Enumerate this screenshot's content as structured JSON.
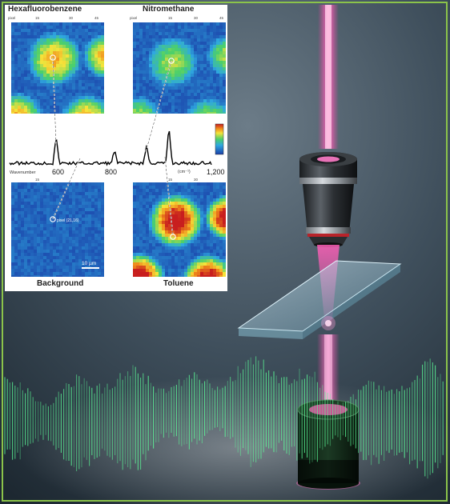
{
  "inset": {
    "top_left_title": "Hexafluorobenzene",
    "top_right_title": "Nitromethane",
    "bottom_left_title": "Background",
    "bottom_right_title": "Toluene",
    "axis_label": "Wavenumber",
    "tick_600": "600",
    "tick_800": "800",
    "unit": "(cm⁻¹)",
    "tick_1200": "1,200",
    "pixel_tag": "pixel (21,16)",
    "scale_bar": "10 µm",
    "small_ticks": {
      "pixel": "pixel",
      "t15": "15",
      "t30": "30",
      "t45": "45"
    }
  },
  "colors": {
    "frame_border": "#8bc34a",
    "laser_pink": "#ff3fa8",
    "wave_green": "#5dff9a",
    "map_background": "#1a3fa8"
  },
  "icons": {
    "objective": "microscope-objective-lens",
    "slide": "glass-sample-slide",
    "detector": "cylindrical-detector-with-green-glow"
  }
}
